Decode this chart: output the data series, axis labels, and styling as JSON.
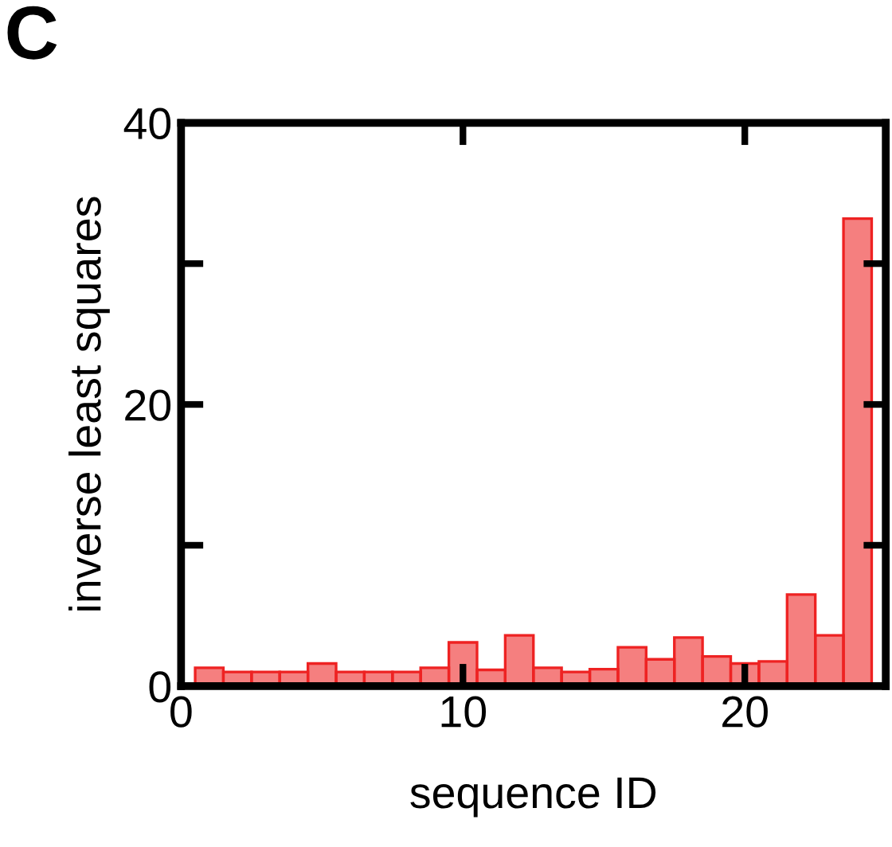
{
  "chart_data": {
    "type": "bar",
    "title": "C",
    "xlabel": "sequence ID",
    "ylabel": "inverse least squares",
    "x": [
      1,
      2,
      3,
      4,
      5,
      6,
      7,
      8,
      9,
      10,
      11,
      12,
      13,
      14,
      15,
      16,
      17,
      18,
      19,
      20,
      21,
      22,
      23,
      24
    ],
    "values": [
      1.3,
      1.0,
      1.0,
      1.0,
      1.6,
      1.0,
      1.0,
      1.0,
      1.3,
      3.1,
      1.15,
      3.6,
      1.3,
      1.0,
      1.2,
      2.75,
      1.9,
      3.45,
      2.1,
      1.6,
      1.75,
      6.5,
      3.6,
      33.2
    ],
    "color": "#ee2222",
    "xlim": [
      0,
      25
    ],
    "xticks": [
      0,
      10,
      20
    ],
    "ylim": [
      0,
      40
    ],
    "yticks": [
      0,
      {
        "value": 10,
        "label": null
      },
      20,
      {
        "value": 30,
        "label": null
      },
      40
    ],
    "grid": false,
    "legend": false
  }
}
